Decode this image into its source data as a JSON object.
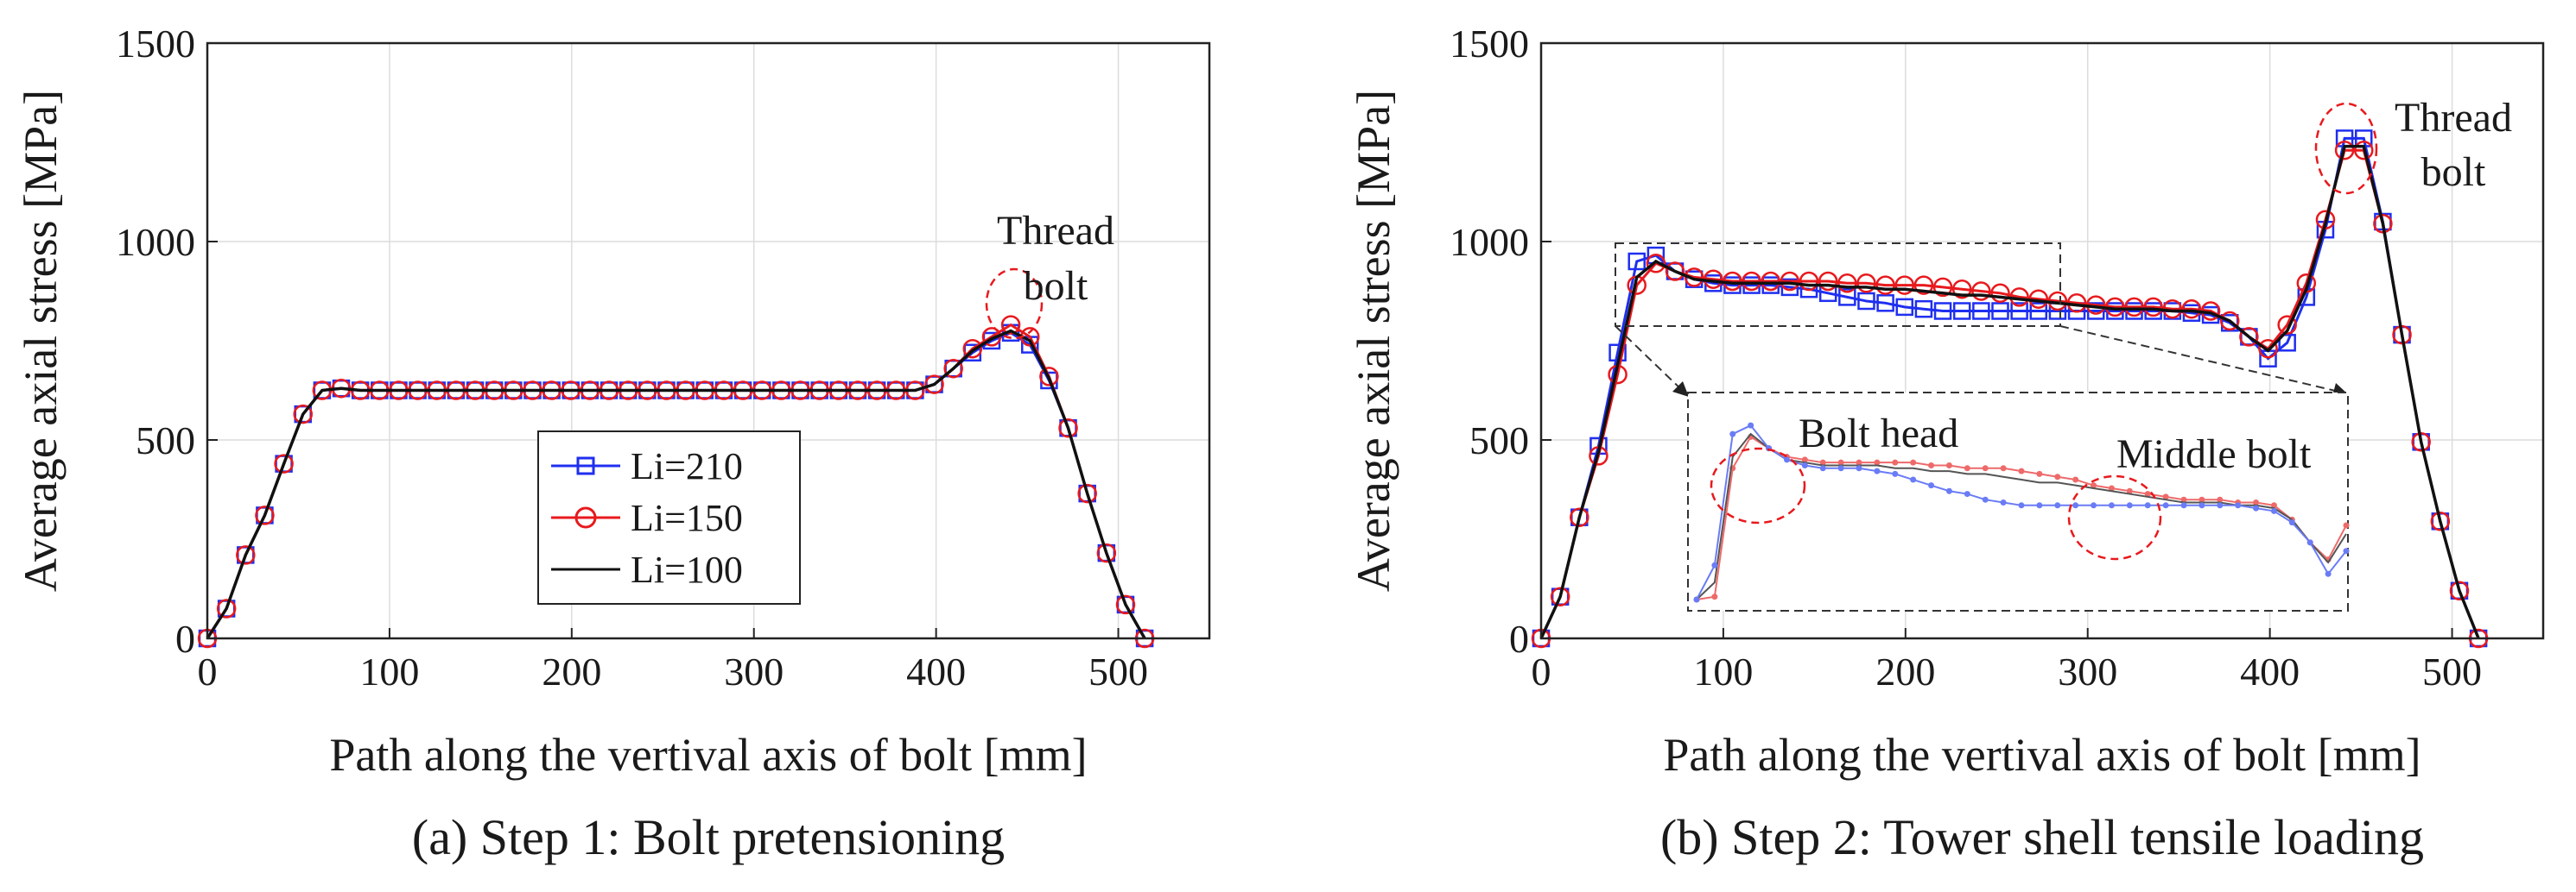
{
  "chart_data": [
    {
      "type": "line",
      "caption": "(a) Step 1: Bolt pretensioning",
      "xlabel": "Path along the vertival axis of bolt [mm]",
      "ylabel": "Average axial stress [MPa]",
      "xlim": [
        0,
        550
      ],
      "ylim": [
        0,
        1500
      ],
      "xticks": [
        0,
        100,
        200,
        300,
        400,
        500
      ],
      "yticks": [
        0,
        500,
        1000,
        1500
      ],
      "grid": true,
      "legend": {
        "placement": "center-left",
        "entries": [
          "Li=210",
          "Li=150",
          "Li=100"
        ]
      },
      "annotations": [
        {
          "lines": [
            "Thread",
            "bolt"
          ],
          "x": 444,
          "y": 780
        }
      ],
      "series": [
        {
          "name": "Li=210",
          "color": "#1f2ff0",
          "marker": "square",
          "x": [
            0,
            10.5,
            21,
            31.5,
            42,
            52.5,
            63,
            73.5,
            84,
            94.5,
            105,
            115.5,
            126,
            136.5,
            147,
            157.5,
            168,
            178.5,
            189,
            199.5,
            210,
            220.5,
            231,
            241.5,
            252,
            262.5,
            273,
            283.5,
            294,
            304.5,
            315,
            325.5,
            336,
            346.5,
            357,
            367.5,
            378,
            388.5,
            399,
            409.5,
            420,
            430.5,
            441,
            451.5,
            462,
            472.5,
            483,
            493.5,
            504,
            514.5
          ],
          "y": [
            0,
            75,
            210,
            310,
            440,
            565,
            625,
            630,
            625,
            625,
            625,
            625,
            625,
            625,
            625,
            625,
            625,
            625,
            625,
            625,
            625,
            625,
            625,
            625,
            625,
            625,
            625,
            625,
            625,
            625,
            625,
            625,
            625,
            625,
            625,
            625,
            625,
            625,
            640,
            680,
            720,
            750,
            770,
            740,
            650,
            530,
            365,
            215,
            85,
            0
          ]
        },
        {
          "name": "Li=150",
          "color": "#e8191d",
          "marker": "circle",
          "x": [
            0,
            10.5,
            21,
            31.5,
            42,
            52.5,
            63,
            73.5,
            84,
            94.5,
            105,
            115.5,
            126,
            136.5,
            147,
            157.5,
            168,
            178.5,
            189,
            199.5,
            210,
            220.5,
            231,
            241.5,
            252,
            262.5,
            273,
            283.5,
            294,
            304.5,
            315,
            325.5,
            336,
            346.5,
            357,
            367.5,
            378,
            388.5,
            399,
            409.5,
            420,
            430.5,
            441,
            451.5,
            462,
            472.5,
            483,
            493.5,
            504,
            514.5
          ],
          "y": [
            0,
            75,
            210,
            310,
            440,
            565,
            625,
            630,
            625,
            625,
            625,
            625,
            625,
            625,
            625,
            625,
            625,
            625,
            625,
            625,
            625,
            625,
            625,
            625,
            625,
            625,
            625,
            625,
            625,
            625,
            625,
            625,
            625,
            625,
            625,
            625,
            625,
            625,
            640,
            680,
            730,
            760,
            790,
            760,
            660,
            530,
            365,
            215,
            85,
            0
          ]
        },
        {
          "name": "Li=100",
          "color": "#111111",
          "marker": "none",
          "x": [
            0,
            10.5,
            21,
            31.5,
            42,
            52.5,
            63,
            73.5,
            84,
            94.5,
            105,
            115.5,
            126,
            136.5,
            147,
            157.5,
            168,
            178.5,
            189,
            199.5,
            210,
            220.5,
            231,
            241.5,
            252,
            262.5,
            273,
            283.5,
            294,
            304.5,
            315,
            325.5,
            336,
            346.5,
            357,
            367.5,
            378,
            388.5,
            399,
            409.5,
            420,
            430.5,
            441,
            451.5,
            462,
            472.5,
            483,
            493.5,
            504,
            514.5
          ],
          "y": [
            0,
            75,
            210,
            310,
            440,
            565,
            625,
            630,
            625,
            625,
            625,
            625,
            625,
            625,
            625,
            625,
            625,
            625,
            625,
            625,
            625,
            625,
            625,
            625,
            625,
            625,
            625,
            625,
            625,
            625,
            625,
            625,
            625,
            625,
            625,
            625,
            625,
            625,
            640,
            680,
            725,
            755,
            775,
            750,
            655,
            530,
            365,
            215,
            85,
            0
          ]
        }
      ]
    },
    {
      "type": "line",
      "caption": "(b) Step 2: Tower shell tensile loading",
      "xlabel": "Path along the vertival axis of bolt [mm]",
      "ylabel": "Average axial stress [MPa]",
      "xlim": [
        0,
        550
      ],
      "ylim": [
        0,
        1500
      ],
      "xticks": [
        0,
        100,
        200,
        300,
        400,
        500
      ],
      "yticks": [
        0,
        500,
        1000,
        1500
      ],
      "grid": true,
      "annotations": [
        {
          "lines": [
            "Thread",
            "bolt"
          ],
          "x": 444,
          "y": 1240
        },
        {
          "lines": [
            "Bolt head"
          ]
        },
        {
          "lines": [
            "Middle bolt"
          ]
        }
      ],
      "series": [
        {
          "name": "Li=210",
          "color": "#1f2ff0",
          "marker": "square",
          "x": [
            0,
            10.5,
            21,
            31.5,
            42,
            52.5,
            63,
            73.5,
            84,
            94.5,
            105,
            115.5,
            126,
            136.5,
            147,
            157.5,
            168,
            178.5,
            189,
            199.5,
            210,
            220.5,
            231,
            241.5,
            252,
            262.5,
            273,
            283.5,
            294,
            304.5,
            315,
            325.5,
            336,
            346.5,
            357,
            367.5,
            378,
            388.5,
            399,
            409.5,
            420,
            430.5,
            441,
            451.5,
            462,
            472.5,
            483,
            493.5,
            504,
            514.5
          ],
          "y": [
            0,
            105,
            305,
            485,
            720,
            950,
            965,
            925,
            905,
            895,
            890,
            890,
            890,
            885,
            880,
            870,
            860,
            850,
            845,
            835,
            830,
            825,
            825,
            825,
            825,
            825,
            825,
            825,
            825,
            825,
            825,
            825,
            825,
            825,
            820,
            815,
            795,
            760,
            705,
            745,
            860,
            1030,
            1260,
            1260,
            1050,
            765,
            495,
            295,
            120,
            0
          ]
        },
        {
          "name": "Li=150",
          "color": "#e8191d",
          "marker": "circle",
          "x": [
            0,
            10.5,
            21,
            31.5,
            42,
            52.5,
            63,
            73.5,
            84,
            94.5,
            105,
            115.5,
            126,
            136.5,
            147,
            157.5,
            168,
            178.5,
            189,
            199.5,
            210,
            220.5,
            231,
            241.5,
            252,
            262.5,
            273,
            283.5,
            294,
            304.5,
            315,
            325.5,
            336,
            346.5,
            357,
            367.5,
            378,
            388.5,
            399,
            409.5,
            420,
            430.5,
            441,
            451.5,
            462,
            472.5,
            483,
            493.5,
            504,
            514.5
          ],
          "y": [
            0,
            105,
            305,
            460,
            665,
            890,
            945,
            925,
            910,
            905,
            900,
            900,
            900,
            900,
            900,
            900,
            895,
            895,
            890,
            890,
            890,
            885,
            880,
            875,
            870,
            860,
            855,
            850,
            845,
            840,
            835,
            835,
            835,
            830,
            830,
            825,
            800,
            760,
            730,
            790,
            895,
            1055,
            1230,
            1230,
            1045,
            765,
            495,
            295,
            120,
            0
          ]
        },
        {
          "name": "Li=100",
          "color": "#111111",
          "marker": "none",
          "x": [
            0,
            10.5,
            21,
            31.5,
            42,
            52.5,
            63,
            73.5,
            84,
            94.5,
            105,
            115.5,
            126,
            136.5,
            147,
            157.5,
            168,
            178.5,
            189,
            199.5,
            210,
            220.5,
            231,
            241.5,
            252,
            262.5,
            273,
            283.5,
            294,
            304.5,
            315,
            325.5,
            336,
            346.5,
            357,
            367.5,
            378,
            388.5,
            399,
            409.5,
            420,
            430.5,
            441,
            451.5,
            462,
            472.5,
            483,
            493.5,
            504,
            514.5
          ],
          "y": [
            0,
            105,
            305,
            470,
            690,
            910,
            950,
            925,
            905,
            900,
            895,
            895,
            895,
            895,
            890,
            890,
            885,
            885,
            880,
            880,
            875,
            870,
            865,
            865,
            860,
            855,
            850,
            845,
            840,
            835,
            830,
            830,
            830,
            825,
            825,
            820,
            800,
            760,
            725,
            775,
            880,
            1045,
            1240,
            1240,
            1045,
            765,
            495,
            295,
            120,
            0
          ]
        }
      ]
    }
  ]
}
